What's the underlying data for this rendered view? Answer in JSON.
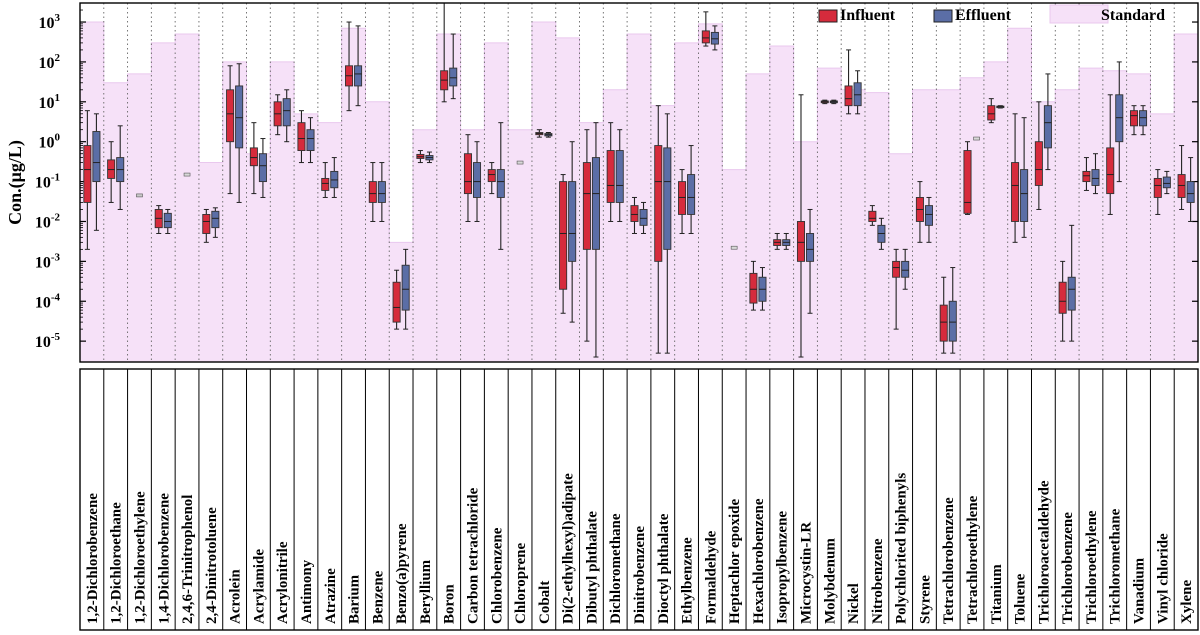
{
  "chart_data": {
    "type": "box",
    "ylabel": "Con.(μg/L)",
    "yscale": "log",
    "ylim": [
      3e-06,
      3000
    ],
    "yticks": [
      {
        "value": 1000,
        "base": "10",
        "exp": "3"
      },
      {
        "value": 100,
        "base": "10",
        "exp": "2"
      },
      {
        "value": 10,
        "base": "10",
        "exp": "1"
      },
      {
        "value": 1,
        "base": "10",
        "exp": "0"
      },
      {
        "value": 0.1,
        "base": "10",
        "exp": "-1"
      },
      {
        "value": 0.01,
        "base": "10",
        "exp": "-2"
      },
      {
        "value": 0.001,
        "base": "10",
        "exp": "-3"
      },
      {
        "value": 0.0001,
        "base": "10",
        "exp": "-4"
      },
      {
        "value": 1e-05,
        "base": "10",
        "exp": "-5"
      }
    ],
    "legend": [
      {
        "name": "Influent",
        "color": "#d62b3c"
      },
      {
        "name": "Effluent",
        "color": "#5b6ea6"
      },
      {
        "name": "Standard",
        "color": "#f6e1f8"
      }
    ],
    "categories": [
      {
        "name": "1,2-Dichlorobenzene",
        "standard": 1000,
        "influent": {
          "min": 0.002,
          "q1": 0.03,
          "median": 0.2,
          "q3": 0.8,
          "max": 6
        },
        "effluent": {
          "min": 0.006,
          "q1": 0.1,
          "median": 0.3,
          "q3": 1.8,
          "max": 5
        }
      },
      {
        "name": "1,2-Dichloroethane",
        "standard": 30,
        "influent": {
          "min": 0.03,
          "q1": 0.12,
          "median": 0.2,
          "q3": 0.35,
          "max": 1
        },
        "effluent": {
          "min": 0.02,
          "q1": 0.1,
          "median": 0.2,
          "q3": 0.4,
          "max": 2.5
        }
      },
      {
        "name": "1,2-Dichloroethylene",
        "standard": 50,
        "single": {
          "series": "influent",
          "value": 0.045
        }
      },
      {
        "name": "1,4-Dichlorobenzene",
        "standard": 300,
        "influent": {
          "min": 0.005,
          "q1": 0.007,
          "median": 0.012,
          "q3": 0.02,
          "max": 0.025
        },
        "effluent": {
          "min": 0.005,
          "q1": 0.007,
          "median": 0.01,
          "q3": 0.016,
          "max": 0.02
        }
      },
      {
        "name": "2,4,6-Trinitrophenol",
        "standard": 500,
        "single": {
          "series": "effluent",
          "value": 0.15
        }
      },
      {
        "name": "2,4-Dinitrotoluene",
        "standard": 0.3,
        "influent": {
          "min": 0.003,
          "q1": 0.005,
          "median": 0.01,
          "q3": 0.015,
          "max": 0.02
        },
        "effluent": {
          "min": 0.004,
          "q1": 0.007,
          "median": 0.012,
          "q3": 0.018,
          "max": 0.022
        }
      },
      {
        "name": "Acrolein",
        "standard": 100,
        "influent": {
          "min": 0.05,
          "q1": 1,
          "median": 5,
          "q3": 20,
          "max": 80
        },
        "effluent": {
          "min": 0.03,
          "q1": 0.7,
          "median": 4,
          "q3": 25,
          "max": 90
        }
      },
      {
        "name": "Acrylamide",
        "standard": 0.5,
        "influent": {
          "min": 0.05,
          "q1": 0.25,
          "median": 0.4,
          "q3": 0.7,
          "max": 3
        },
        "effluent": {
          "min": 0.04,
          "q1": 0.1,
          "median": 0.25,
          "q3": 0.5,
          "max": 1.2
        }
      },
      {
        "name": "Acrylonitrile",
        "standard": 100,
        "influent": {
          "min": 1.5,
          "q1": 2.5,
          "median": 5,
          "q3": 10,
          "max": 15
        },
        "effluent": {
          "min": 1,
          "q1": 2.5,
          "median": 6,
          "q3": 12,
          "max": 20
        }
      },
      {
        "name": "Antimony",
        "standard": 5,
        "influent": {
          "min": 0.3,
          "q1": 0.6,
          "median": 1.2,
          "q3": 3,
          "max": 6
        },
        "effluent": {
          "min": 0.3,
          "q1": 0.6,
          "median": 1.2,
          "q3": 2,
          "max": 4
        }
      },
      {
        "name": "Atrazine",
        "standard": 3,
        "influent": {
          "min": 0.04,
          "q1": 0.06,
          "median": 0.09,
          "q3": 0.12,
          "max": 0.3
        },
        "effluent": {
          "min": 0.04,
          "q1": 0.07,
          "median": 0.11,
          "q3": 0.18,
          "max": 0.4
        }
      },
      {
        "name": "Barium",
        "standard": 700,
        "influent": {
          "min": 6,
          "q1": 25,
          "median": 45,
          "q3": 80,
          "max": 1000
        },
        "effluent": {
          "min": 8,
          "q1": 25,
          "median": 50,
          "q3": 80,
          "max": 800
        }
      },
      {
        "name": "Benzene",
        "standard": 10,
        "influent": {
          "min": 0.01,
          "q1": 0.03,
          "median": 0.05,
          "q3": 0.1,
          "max": 0.3
        },
        "effluent": {
          "min": 0.01,
          "q1": 0.03,
          "median": 0.05,
          "q3": 0.1,
          "max": 0.3
        }
      },
      {
        "name": "Benzo(a)pyrene",
        "standard": 0.003,
        "influent": {
          "min": 2e-05,
          "q1": 3e-05,
          "median": 7e-05,
          "q3": 0.0003,
          "max": 0.0006
        },
        "effluent": {
          "min": 2e-05,
          "q1": 6e-05,
          "median": 0.0002,
          "q3": 0.0008,
          "max": 0.002
        }
      },
      {
        "name": "Beryllium",
        "standard": 2,
        "influent": {
          "min": 0.3,
          "q1": 0.38,
          "median": 0.42,
          "q3": 0.48,
          "max": 0.6
        },
        "effluent": {
          "min": 0.3,
          "q1": 0.35,
          "median": 0.4,
          "q3": 0.45,
          "max": 0.55
        }
      },
      {
        "name": "Boron",
        "standard": 500,
        "influent": {
          "min": 10,
          "q1": 20,
          "median": 35,
          "q3": 60,
          "max": 3000
        },
        "effluent": {
          "min": 12,
          "q1": 25,
          "median": 40,
          "q3": 70,
          "max": 500
        }
      },
      {
        "name": "Carbon tetrachloride",
        "standard": 2,
        "influent": {
          "min": 0.01,
          "q1": 0.05,
          "median": 0.1,
          "q3": 0.5,
          "max": 1.5
        },
        "effluent": {
          "min": 0.01,
          "q1": 0.04,
          "median": 0.1,
          "q3": 0.3,
          "max": 1
        }
      },
      {
        "name": "Chlorobenzene",
        "standard": 300,
        "influent": {
          "min": 0.05,
          "q1": 0.1,
          "median": 0.15,
          "q3": 0.2,
          "max": 0.3
        },
        "effluent": {
          "min": 0.002,
          "q1": 0.04,
          "median": 0.1,
          "q3": 0.2,
          "max": 3
        }
      },
      {
        "name": "Chloroprene",
        "standard": 2,
        "single": {
          "series": "effluent",
          "value": 0.3
        }
      },
      {
        "name": "Cobalt",
        "standard": 1000,
        "influent": {
          "min": 1.3,
          "q1": 1.5,
          "median": 1.6,
          "q3": 1.7,
          "max": 2
        },
        "effluent": {
          "min": 1.3,
          "q1": 1.4,
          "median": 1.5,
          "q3": 1.6,
          "max": 1.7
        }
      },
      {
        "name": "Di(2-ethylhexyl)adipate",
        "standard": 400,
        "influent": {
          "min": 5e-05,
          "q1": 0.0002,
          "median": 0.005,
          "q3": 0.1,
          "max": 0.15
        },
        "effluent": {
          "min": 3e-05,
          "q1": 0.001,
          "median": 0.005,
          "q3": 0.1,
          "max": 1
        }
      },
      {
        "name": "Dibutyl phthalate",
        "standard": 3,
        "influent": {
          "min": 1e-05,
          "q1": 0.002,
          "median": 0.05,
          "q3": 0.3,
          "max": 2
        },
        "effluent": {
          "min": 4e-06,
          "q1": 0.002,
          "median": 0.05,
          "q3": 0.4,
          "max": 3
        }
      },
      {
        "name": "Dichloromethane",
        "standard": 20,
        "influent": {
          "min": 0.01,
          "q1": 0.03,
          "median": 0.08,
          "q3": 0.6,
          "max": 3
        },
        "effluent": {
          "min": 0.01,
          "q1": 0.03,
          "median": 0.08,
          "q3": 0.6,
          "max": 2
        }
      },
      {
        "name": "Dinitrobenzene",
        "standard": 500,
        "influent": {
          "min": 0.005,
          "q1": 0.01,
          "median": 0.015,
          "q3": 0.025,
          "max": 0.04
        },
        "effluent": {
          "min": 0.005,
          "q1": 0.008,
          "median": 0.012,
          "q3": 0.02,
          "max": 0.03
        }
      },
      {
        "name": "Dioctyl phthalate",
        "standard": 8,
        "influent": {
          "min": 5e-06,
          "q1": 0.001,
          "median": 0.1,
          "q3": 0.8,
          "max": 8
        },
        "effluent": {
          "min": 5e-06,
          "q1": 0.002,
          "median": 0.1,
          "q3": 0.7,
          "max": 5
        }
      },
      {
        "name": "Ethylbenzene",
        "standard": 300,
        "influent": {
          "min": 0.005,
          "q1": 0.015,
          "median": 0.04,
          "q3": 0.1,
          "max": 0.2
        },
        "effluent": {
          "min": 0.005,
          "q1": 0.015,
          "median": 0.04,
          "q3": 0.15,
          "max": 0.8
        }
      },
      {
        "name": "Formaldehyde",
        "standard": 900,
        "influent": {
          "min": 250,
          "q1": 300,
          "median": 400,
          "q3": 600,
          "max": 1800
        },
        "effluent": {
          "min": 200,
          "q1": 280,
          "median": 380,
          "q3": 550,
          "max": 800
        }
      },
      {
        "name": "Heptachlor epoxide",
        "standard": 0.2,
        "single": {
          "series": "effluent",
          "value": 0.0022
        }
      },
      {
        "name": "Hexachlorobenzene",
        "standard": 50,
        "influent": {
          "min": 6e-05,
          "q1": 9e-05,
          "median": 0.0002,
          "q3": 0.0005,
          "max": 0.001
        },
        "effluent": {
          "min": 6e-05,
          "q1": 0.0001,
          "median": 0.0002,
          "q3": 0.0004,
          "max": 0.0007
        }
      },
      {
        "name": "Isopropylbenzene",
        "standard": 250,
        "influent": {
          "min": 0.002,
          "q1": 0.0025,
          "median": 0.003,
          "q3": 0.0035,
          "max": 0.005
        },
        "effluent": {
          "min": 0.002,
          "q1": 0.0025,
          "median": 0.003,
          "q3": 0.0035,
          "max": 0.005
        }
      },
      {
        "name": "Microcystin-LR",
        "standard": 1,
        "influent": {
          "min": 4e-06,
          "q1": 0.001,
          "median": 0.003,
          "q3": 0.01,
          "max": 15
        },
        "effluent": {
          "min": 5e-05,
          "q1": 0.001,
          "median": 0.002,
          "q3": 0.005,
          "max": 0.02
        }
      },
      {
        "name": "Molybdenum",
        "standard": 70,
        "influent": {
          "min": 9,
          "q1": 9.5,
          "median": 10,
          "q3": 10.5,
          "max": 11
        },
        "effluent": {
          "min": 9,
          "q1": 9.5,
          "median": 10,
          "q3": 10.5,
          "max": 11
        }
      },
      {
        "name": "Nickel",
        "standard": 20,
        "influent": {
          "min": 5,
          "q1": 8,
          "median": 12,
          "q3": 25,
          "max": 200
        },
        "effluent": {
          "min": 5,
          "q1": 8,
          "median": 15,
          "q3": 30,
          "max": 60
        }
      },
      {
        "name": "Nitrobenzene",
        "standard": 17,
        "influent": {
          "min": 0.008,
          "q1": 0.01,
          "median": 0.012,
          "q3": 0.018,
          "max": 0.025
        },
        "effluent": {
          "min": 0.002,
          "q1": 0.003,
          "median": 0.005,
          "q3": 0.008,
          "max": 0.012
        }
      },
      {
        "name": "Polychlorited biphenyls",
        "standard": 0.5,
        "influent": {
          "min": 2e-05,
          "q1": 0.0004,
          "median": 0.0007,
          "q3": 0.001,
          "max": 0.002
        },
        "effluent": {
          "min": 0.0002,
          "q1": 0.0004,
          "median": 0.0006,
          "q3": 0.001,
          "max": 0.002
        }
      },
      {
        "name": "Styrene",
        "standard": 20,
        "influent": {
          "min": 0.003,
          "q1": 0.01,
          "median": 0.02,
          "q3": 0.04,
          "max": 0.1
        },
        "effluent": {
          "min": 0.003,
          "q1": 0.008,
          "median": 0.015,
          "q3": 0.025,
          "max": 0.04
        }
      },
      {
        "name": "Tetrachlorobenzene",
        "standard": 20,
        "influent": {
          "min": 5e-06,
          "q1": 1e-05,
          "median": 3e-05,
          "q3": 8e-05,
          "max": 0.0004
        },
        "effluent": {
          "min": 5e-06,
          "q1": 1e-05,
          "median": 3e-05,
          "q3": 0.0001,
          "max": 0.0007
        }
      },
      {
        "name": "Tetrachloroethylene",
        "standard": 40,
        "influent": {
          "min": 0.015,
          "q1": 0.016,
          "median": 0.03,
          "q3": 0.6,
          "max": 1
        },
        "single": {
          "series": "effluent",
          "value": 1.2
        }
      },
      {
        "name": "Titanium",
        "standard": 100,
        "influent": {
          "min": 3,
          "q1": 3.5,
          "median": 5,
          "q3": 8,
          "max": 12
        },
        "effluent": {
          "min": 7,
          "q1": 7.2,
          "median": 7.5,
          "q3": 7.8,
          "max": 8
        }
      },
      {
        "name": "Toluene",
        "standard": 700,
        "influent": {
          "min": 0.003,
          "q1": 0.01,
          "median": 0.08,
          "q3": 0.3,
          "max": 5
        },
        "effluent": {
          "min": 0.004,
          "q1": 0.01,
          "median": 0.05,
          "q3": 0.2,
          "max": 4
        }
      },
      {
        "name": "Trichloroacetaldehyde",
        "standard": 10,
        "influent": {
          "min": 0.02,
          "q1": 0.08,
          "median": 0.2,
          "q3": 1,
          "max": 10
        },
        "effluent": {
          "min": 0.2,
          "q1": 0.7,
          "median": 3,
          "q3": 8,
          "max": 50
        }
      },
      {
        "name": "Trichlorobenzene",
        "standard": 20,
        "influent": {
          "min": 1e-05,
          "q1": 5e-05,
          "median": 0.0001,
          "q3": 0.0003,
          "max": 0.001
        },
        "effluent": {
          "min": 1e-05,
          "q1": 6e-05,
          "median": 0.0002,
          "q3": 0.0004,
          "max": 0.008
        }
      },
      {
        "name": "Trichloroethylene",
        "standard": 70,
        "influent": {
          "min": 0.06,
          "q1": 0.1,
          "median": 0.14,
          "q3": 0.18,
          "max": 0.4
        },
        "effluent": {
          "min": 0.05,
          "q1": 0.08,
          "median": 0.12,
          "q3": 0.2,
          "max": 0.5
        }
      },
      {
        "name": "Trichloromethane",
        "standard": 60,
        "influent": {
          "min": 0.015,
          "q1": 0.05,
          "median": 0.15,
          "q3": 0.7,
          "max": 15
        },
        "effluent": {
          "min": 0.1,
          "q1": 1,
          "median": 4,
          "q3": 15,
          "max": 100
        }
      },
      {
        "name": "Vanadium",
        "standard": 50,
        "influent": {
          "min": 1.5,
          "q1": 2.5,
          "median": 4.5,
          "q3": 6,
          "max": 8
        },
        "effluent": {
          "min": 1.5,
          "q1": 2.5,
          "median": 4,
          "q3": 6,
          "max": 8
        }
      },
      {
        "name": "Vinyl chloride",
        "standard": 5,
        "influent": {
          "min": 0.015,
          "q1": 0.04,
          "median": 0.08,
          "q3": 0.12,
          "max": 0.2
        },
        "effluent": {
          "min": 0.05,
          "q1": 0.07,
          "median": 0.09,
          "q3": 0.13,
          "max": 0.18
        }
      },
      {
        "name": "Xylene",
        "standard": 500,
        "influent": {
          "min": 0.02,
          "q1": 0.04,
          "median": 0.08,
          "q3": 0.15,
          "max": 0.8
        },
        "effluent": {
          "min": 0.01,
          "q1": 0.03,
          "median": 0.05,
          "q3": 0.1,
          "max": 0.4
        }
      }
    ]
  }
}
